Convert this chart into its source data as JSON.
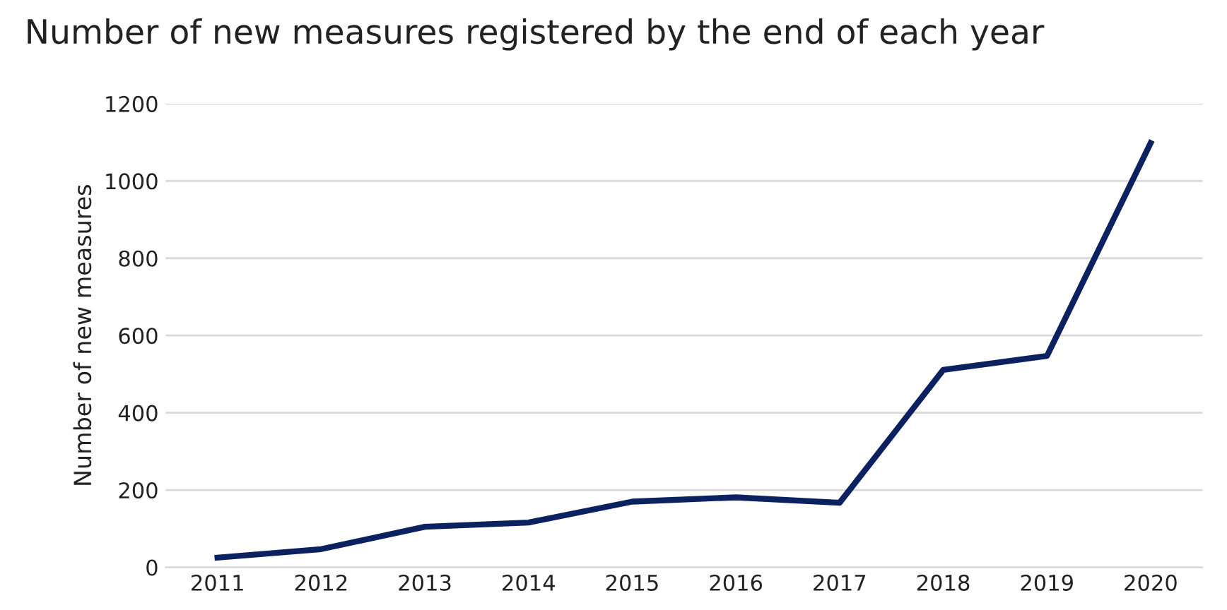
{
  "chart_data": {
    "type": "line",
    "title": "Number of new measures registered by the end of each year",
    "ylabel": "Number of new measures",
    "categories": [
      "2011",
      "2012",
      "2013",
      "2014",
      "2015",
      "2016",
      "2017",
      "2018",
      "2019",
      "2020"
    ],
    "series": [
      {
        "color": "#0b2160",
        "values": [
          25,
          47,
          105,
          116,
          170,
          181,
          167,
          511,
          547,
          1098
        ]
      }
    ],
    "ylim": [
      0,
      1200
    ],
    "yticks": [
      0,
      200,
      400,
      600,
      800,
      1000,
      1200
    ],
    "grid": "y",
    "legend": false,
    "marker": "none",
    "line_style": "solid"
  }
}
